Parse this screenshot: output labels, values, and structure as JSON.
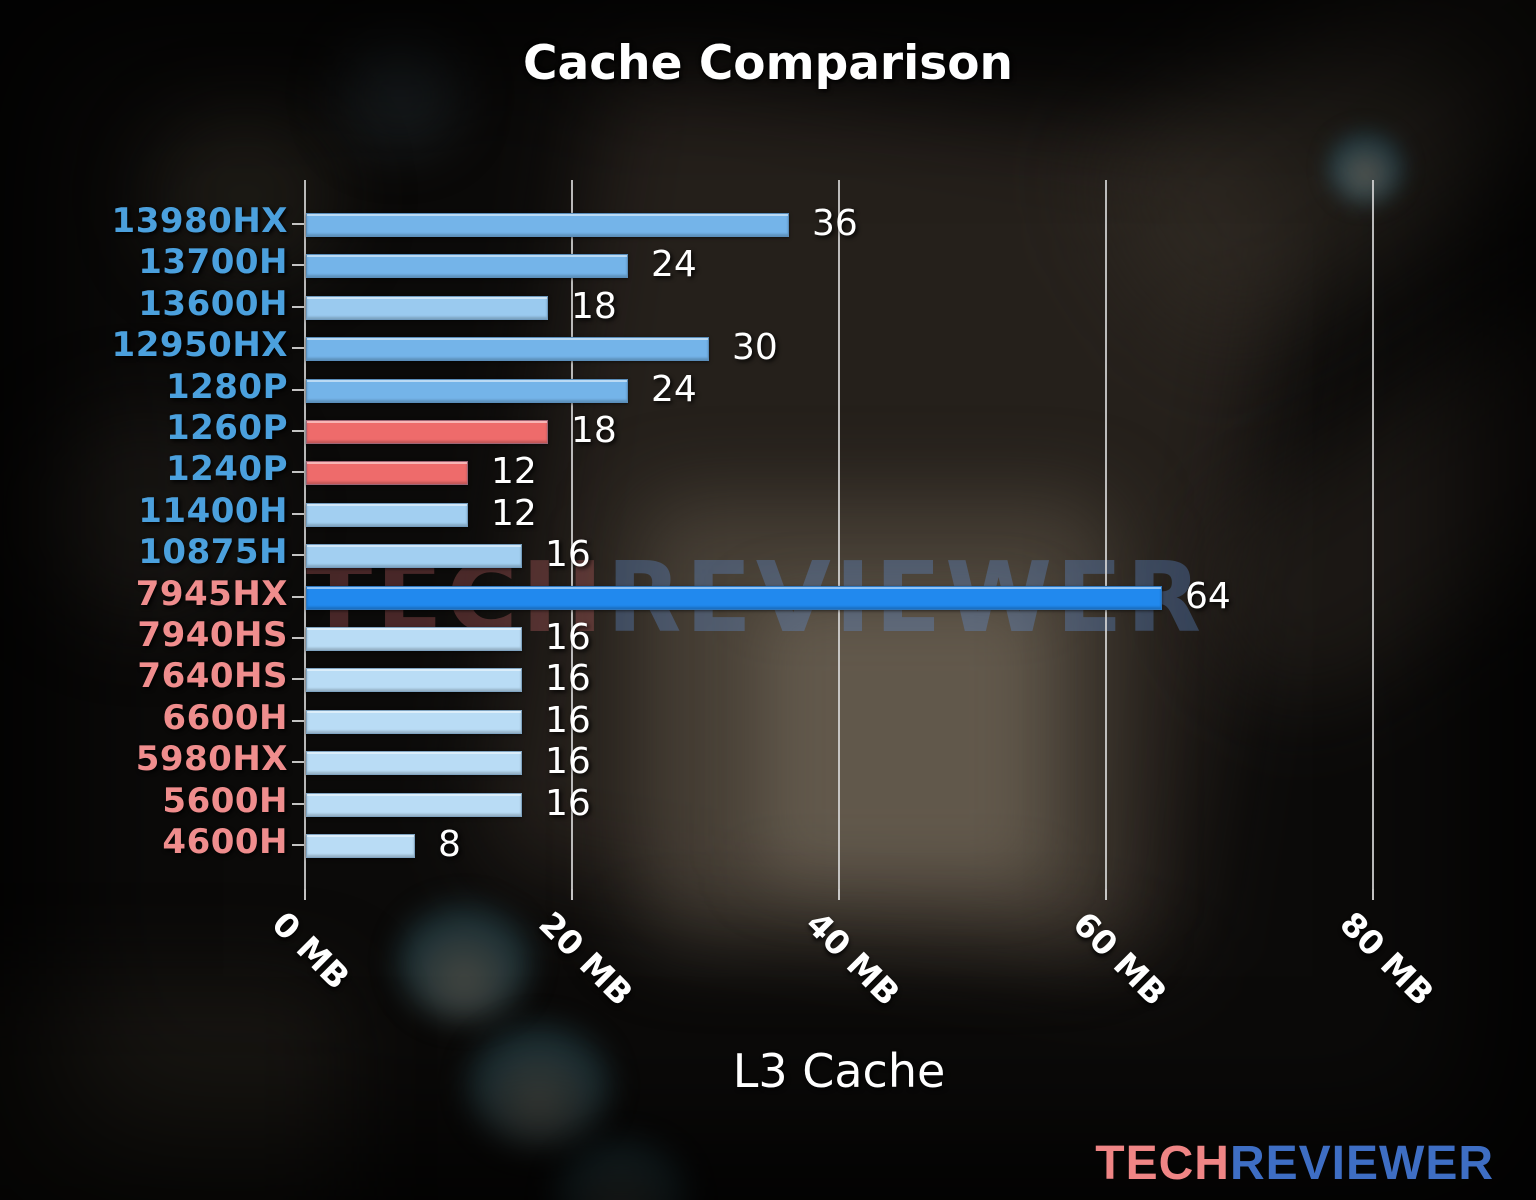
{
  "title": "Cache Comparison",
  "x_axis_title": "L3 Cache",
  "watermark": {
    "tech": "TECH",
    "reviewer": "REVIEWER"
  },
  "logo": {
    "tech": "TECH",
    "reviewer": "REVIEWER"
  },
  "colors": {
    "intel_label": "#4ba0dd",
    "amd_label": "#ef8d8d",
    "highlight_bar": "#2189ee",
    "warning_bar": "#ee6b6b",
    "value_text": "#ffffff",
    "grid": "#d7d7d7"
  },
  "chart_data": {
    "type": "bar",
    "orientation": "horizontal",
    "title": "Cache Comparison",
    "xlabel": "L3 Cache",
    "unit": "MB",
    "grid": true,
    "legend": false,
    "xlim": [
      0,
      88
    ],
    "x_tick_values": [
      0,
      20,
      40,
      60,
      80
    ],
    "x_ticks": [
      "0 MB",
      "20 MB",
      "40 MB",
      "60 MB",
      "80 MB"
    ],
    "categories": [
      "13980HX",
      "13700H",
      "13600H",
      "12950HX",
      "1280P",
      "1260P",
      "1240P",
      "11400H",
      "10875H",
      "7945HX",
      "7940HS",
      "7640HS",
      "6600H",
      "5980HX",
      "5600H",
      "4600H"
    ],
    "values": [
      36,
      24,
      18,
      30,
      24,
      18,
      12,
      12,
      16,
      64,
      16,
      16,
      16,
      16,
      16,
      8
    ],
    "rows": [
      {
        "label": "13980HX",
        "value": 36,
        "vendor": "intel",
        "bar_color": "#74b4e9",
        "label_color": "#4ba0dd"
      },
      {
        "label": "13700H",
        "value": 24,
        "vendor": "intel",
        "bar_color": "#74b4e9",
        "label_color": "#4ba0dd"
      },
      {
        "label": "13600H",
        "value": 18,
        "vendor": "intel",
        "bar_color": "#9acaef",
        "label_color": "#4ba0dd"
      },
      {
        "label": "12950HX",
        "value": 30,
        "vendor": "intel",
        "bar_color": "#74b4e9",
        "label_color": "#4ba0dd"
      },
      {
        "label": "1280P",
        "value": 24,
        "vendor": "intel",
        "bar_color": "#74b4e9",
        "label_color": "#4ba0dd"
      },
      {
        "label": "1260P",
        "value": 18,
        "vendor": "intel",
        "bar_color": "#ee6b6b",
        "label_color": "#4ba0dd"
      },
      {
        "label": "1240P",
        "value": 12,
        "vendor": "intel",
        "bar_color": "#ee6b6b",
        "label_color": "#4ba0dd"
      },
      {
        "label": "11400H",
        "value": 12,
        "vendor": "intel",
        "bar_color": "#a2cff1",
        "label_color": "#4ba0dd"
      },
      {
        "label": "10875H",
        "value": 16,
        "vendor": "intel",
        "bar_color": "#a2cff1",
        "label_color": "#4ba0dd"
      },
      {
        "label": "7945HX",
        "value": 64,
        "vendor": "amd",
        "bar_color": "#2189ee",
        "label_color": "#ef8d8d"
      },
      {
        "label": "7940HS",
        "value": 16,
        "vendor": "amd",
        "bar_color": "#b9dcf5",
        "label_color": "#ef8d8d"
      },
      {
        "label": "7640HS",
        "value": 16,
        "vendor": "amd",
        "bar_color": "#b9dcf5",
        "label_color": "#ef8d8d"
      },
      {
        "label": "6600H",
        "value": 16,
        "vendor": "amd",
        "bar_color": "#b9dcf5",
        "label_color": "#ef8d8d"
      },
      {
        "label": "5980HX",
        "value": 16,
        "vendor": "amd",
        "bar_color": "#b9dcf5",
        "label_color": "#ef8d8d"
      },
      {
        "label": "5600H",
        "value": 16,
        "vendor": "amd",
        "bar_color": "#b9dcf5",
        "label_color": "#ef8d8d"
      },
      {
        "label": "4600H",
        "value": 8,
        "vendor": "amd",
        "bar_color": "#b9dcf5",
        "label_color": "#ef8d8d"
      }
    ]
  }
}
